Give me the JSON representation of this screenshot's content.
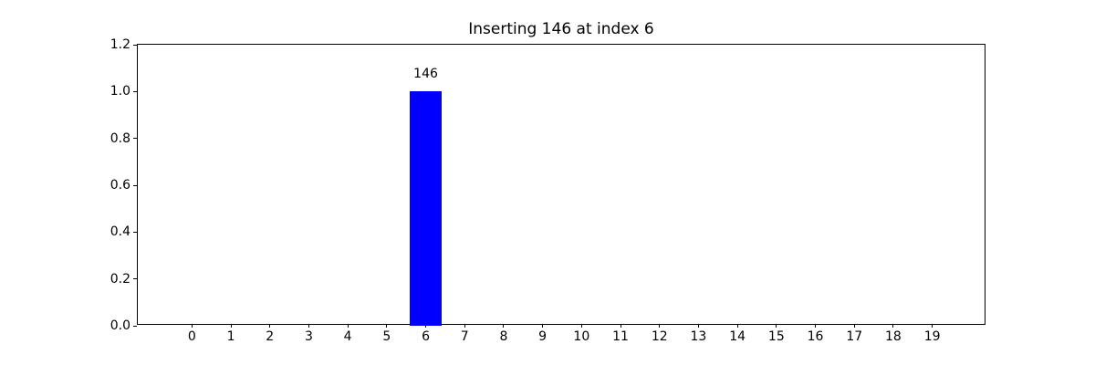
{
  "chart_data": {
    "type": "bar",
    "title": "Inserting 146 at index 6",
    "categories": [
      0,
      1,
      2,
      3,
      4,
      5,
      6,
      7,
      8,
      9,
      10,
      11,
      12,
      13,
      14,
      15,
      16,
      17,
      18,
      19
    ],
    "values": [
      0,
      0,
      0,
      0,
      0,
      0,
      1.0,
      0,
      0,
      0,
      0,
      0,
      0,
      0,
      0,
      0,
      0,
      0,
      0,
      0
    ],
    "annotations": [
      {
        "index": 6,
        "text": "146"
      }
    ],
    "bar_color": "#0000ff",
    "bar_width_units": 0.8,
    "xlabel": "",
    "ylabel": "",
    "xlim": [
      -1.39,
      20.39
    ],
    "ylim": [
      0,
      1.2
    ],
    "xticks": [
      "0",
      "1",
      "2",
      "3",
      "4",
      "5",
      "6",
      "7",
      "8",
      "9",
      "10",
      "11",
      "12",
      "13",
      "14",
      "15",
      "16",
      "17",
      "18",
      "19"
    ],
    "yticks": [
      "0.0",
      "0.2",
      "0.4",
      "0.6",
      "0.8",
      "1.0",
      "1.2"
    ],
    "grid": false,
    "legend": null,
    "axis_color": "#000000",
    "background_color": "#ffffff"
  }
}
